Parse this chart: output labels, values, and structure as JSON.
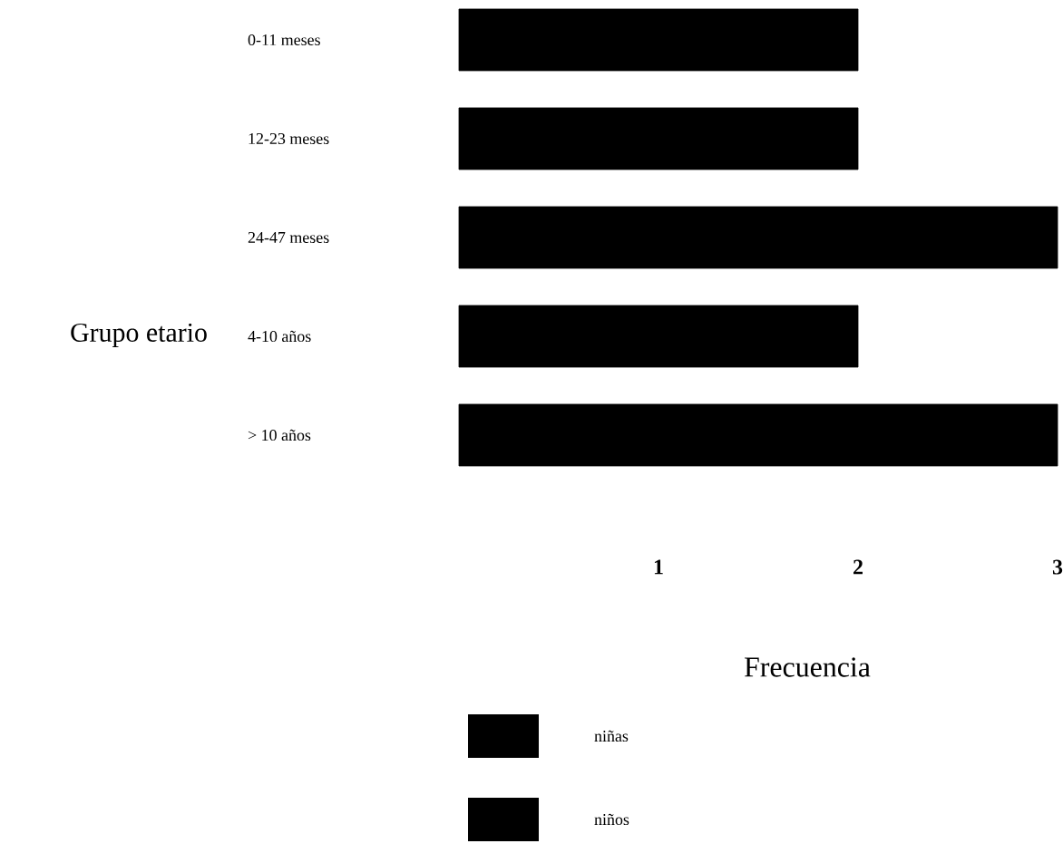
{
  "chart_data": {
    "type": "bar",
    "orientation": "horizontal",
    "stacked": true,
    "ylabel": "Grupo etario",
    "xlabel": "Frecuencia",
    "categories": [
      "0-11 meses",
      "12-23 meses",
      "24-47 meses",
      "4-10 años",
      "> 10 años"
    ],
    "series": [
      {
        "name": "niñas",
        "color": "#000000",
        "values": [
          2,
          2,
          3,
          2,
          3
        ]
      },
      {
        "name": "niños",
        "color": "#000000",
        "values": [
          null,
          null,
          null,
          null,
          null
        ]
      }
    ],
    "xlim": [
      0,
      3
    ],
    "xticks": [
      1,
      2,
      3
    ],
    "legend": "bottom",
    "grid": false
  }
}
